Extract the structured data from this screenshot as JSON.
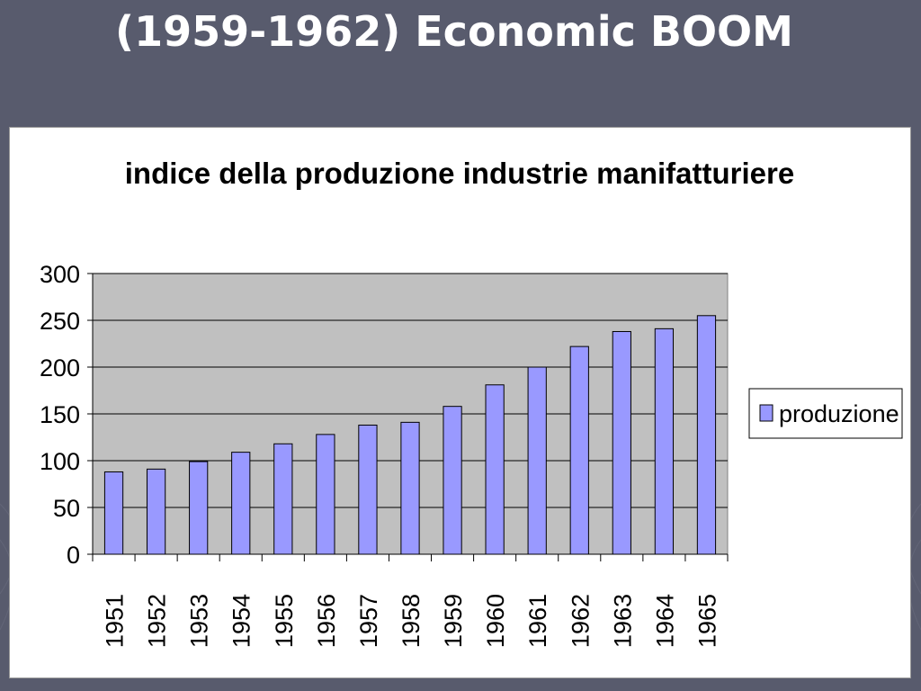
{
  "slide": {
    "title": "(1959-1962) Economic BOOM",
    "background_color": "#585b6d"
  },
  "chart_data": {
    "type": "bar",
    "title": "indice della produzione industrie manifatturiere",
    "xlabel": "",
    "ylabel": "",
    "categories": [
      "1951",
      "1952",
      "1953",
      "1954",
      "1955",
      "1956",
      "1957",
      "1958",
      "1959",
      "1960",
      "1961",
      "1962",
      "1963",
      "1964",
      "1965"
    ],
    "series": [
      {
        "name": "produzione",
        "values": [
          88,
          91,
          99,
          109,
          118,
          128,
          138,
          141,
          158,
          181,
          200,
          222,
          238,
          241,
          255
        ],
        "color": "#9999ff"
      }
    ],
    "ylim": [
      0,
      300
    ],
    "yticks": [
      "0",
      "50",
      "100",
      "150",
      "200",
      "250",
      "300"
    ],
    "grid": true,
    "legend_position": "right",
    "plot_background": "#c0c0c0"
  }
}
